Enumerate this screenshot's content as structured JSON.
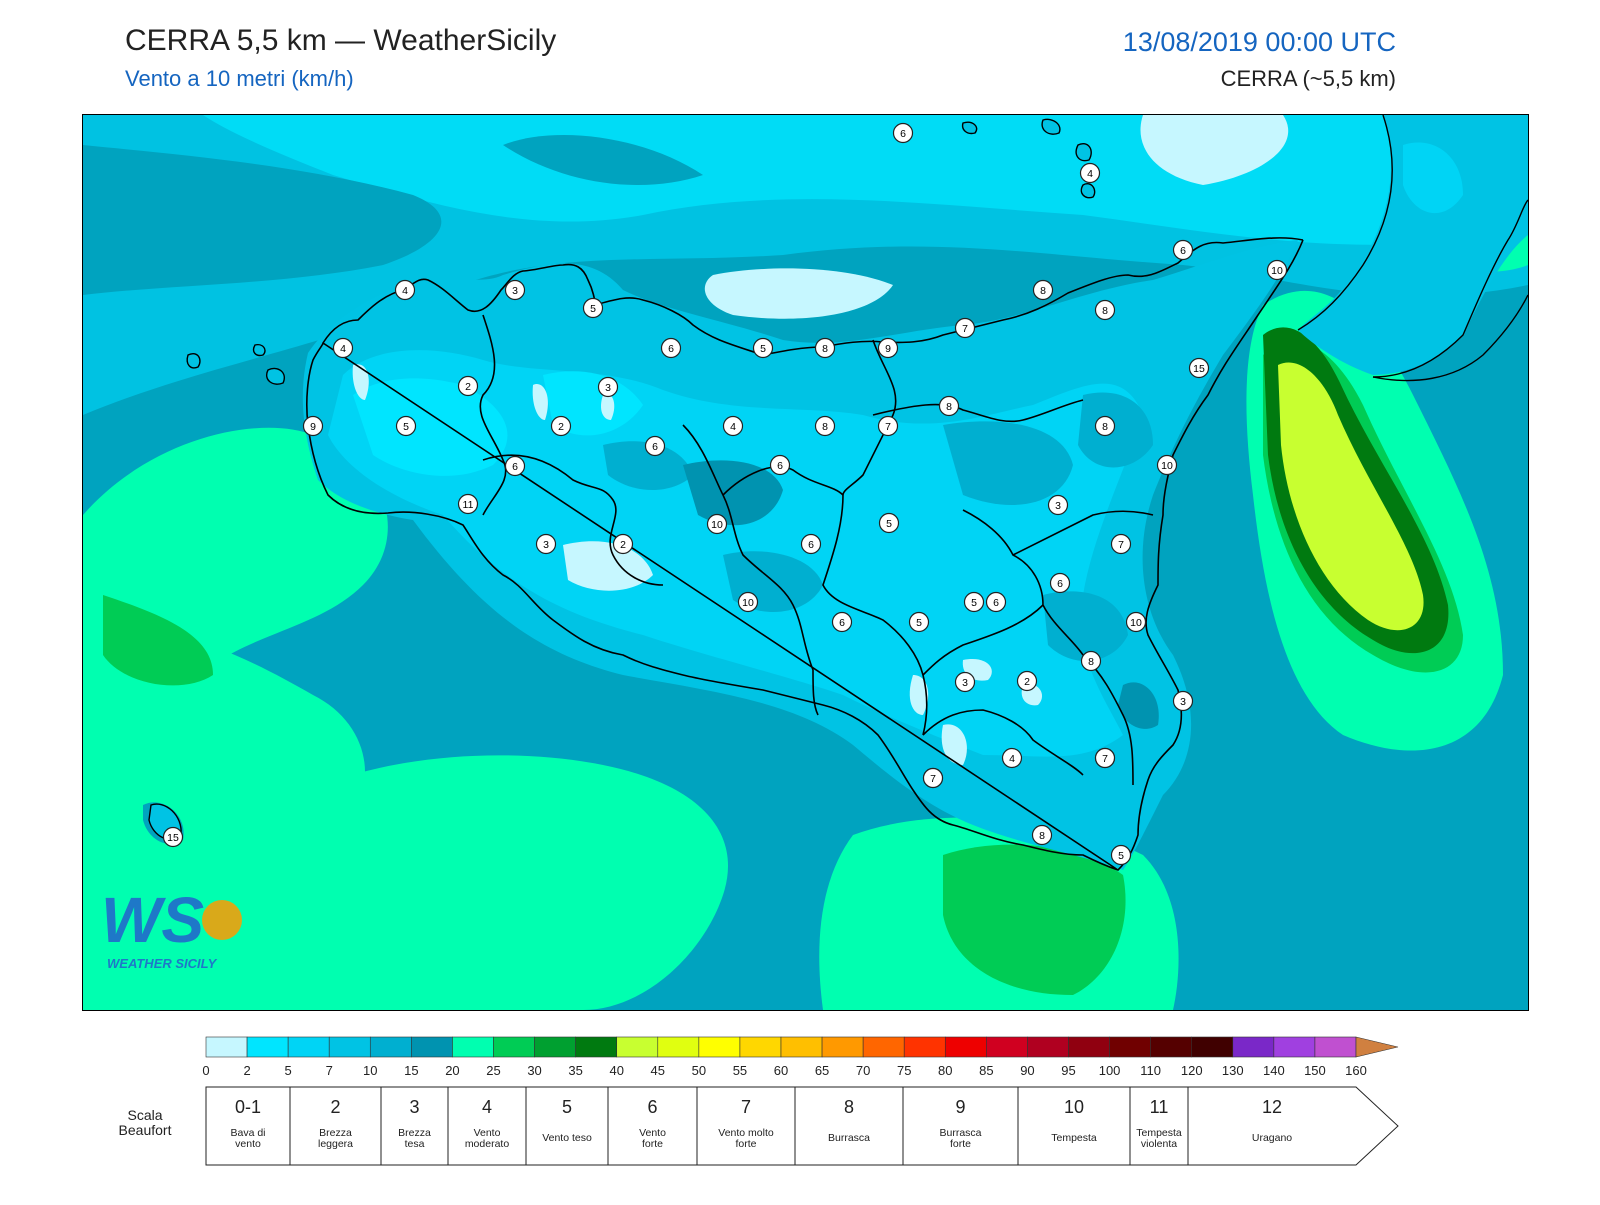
{
  "header": {
    "title": "CERRA 5,5 km — WeatherSicily",
    "subtitle": "Vento a 10 metri (km/h)",
    "datetime": "13/08/2019 00:00 UTC",
    "model": "CERRA (~5,5 km)"
  },
  "logo": {
    "letters": "WS",
    "text": "WEATHER SICILY"
  },
  "colorbar": {
    "colors": [
      "#c6f7ff",
      "#00e5ff",
      "#00d4f5",
      "#00c3e4",
      "#00afd0",
      "#0093b0",
      "#00ffb0",
      "#00cc55",
      "#00a030",
      "#007a10",
      "#c8ff30",
      "#e0ff10",
      "#ffff00",
      "#ffd700",
      "#ffbf00",
      "#ff9900",
      "#ff6600",
      "#ff3300",
      "#ee0000",
      "#d00020",
      "#b00020",
      "#900010",
      "#700000",
      "#550000",
      "#400000",
      "#7a28c8",
      "#a040e0",
      "#c050d0",
      "#e020e0",
      "#888888",
      "#666666",
      "#000000",
      "#7a4020",
      "#b06030",
      "#d08040"
    ],
    "ticks": [
      "0",
      "2",
      "5",
      "7",
      "10",
      "15",
      "20",
      "25",
      "30",
      "35",
      "40",
      "45",
      "50",
      "55",
      "60",
      "65",
      "70",
      "75",
      "80",
      "85",
      "90",
      "95",
      "100",
      "110",
      "120",
      "130",
      "140",
      "150",
      "160"
    ]
  },
  "beaufort": {
    "label": "Scala Beaufort",
    "classes": [
      {
        "num": "0-1",
        "name": "Bava di vento"
      },
      {
        "num": "2",
        "name": "Brezza leggera"
      },
      {
        "num": "3",
        "name": "Brezza tesa"
      },
      {
        "num": "4",
        "name": "Vento moderato"
      },
      {
        "num": "5",
        "name": "Vento teso"
      },
      {
        "num": "6",
        "name": "Vento forte"
      },
      {
        "num": "7",
        "name": "Vento molto forte"
      },
      {
        "num": "8",
        "name": "Burrasca"
      },
      {
        "num": "9",
        "name": "Burrasca forte"
      },
      {
        "num": "10",
        "name": "Tempesta"
      },
      {
        "num": "11",
        "name": "Tempesta violenta"
      },
      {
        "num": "12",
        "name": "Uragano"
      }
    ]
  },
  "stations": [
    "6",
    "4",
    "6",
    "10",
    "4",
    "3",
    "5",
    "4",
    "6",
    "5",
    "8",
    "9",
    "7",
    "8",
    "8",
    "2",
    "3",
    "15",
    "9",
    "5",
    "2",
    "6",
    "4",
    "8",
    "7",
    "8",
    "6",
    "10",
    "6",
    "11",
    "8",
    "5",
    "3",
    "10",
    "3",
    "2",
    "6",
    "7",
    "5",
    "6",
    "10",
    "10",
    "6",
    "5",
    "3",
    "8",
    "2",
    "3",
    "6",
    "7",
    "8",
    "4",
    "7",
    "8",
    "5",
    "7",
    "15"
  ]
}
